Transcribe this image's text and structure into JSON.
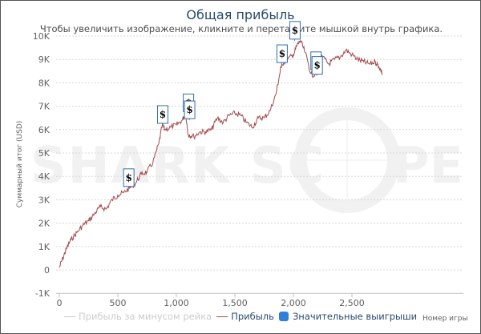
{
  "header": {
    "title": "Общая прибыль",
    "subtitle": "Чтобы увеличить изображение, кликните и перетащите мышкой внутрь графика."
  },
  "watermark": "SHARK SCOPE",
  "colors": {
    "profit_line": "#a5494b",
    "rake_line": "#c8c8c8",
    "big_win_marker": "#2f7ed8",
    "title": "#274b6d",
    "grid": "#d8d8d8"
  },
  "axes": {
    "y_title": "Суммарный итог (USD)",
    "x_title": "Номер игры",
    "y_ticks": [
      "10K",
      "9K",
      "8K",
      "7K",
      "6K",
      "5K",
      "4K",
      "3K",
      "2K",
      "1K",
      "0",
      "-1K"
    ],
    "x_ticks": [
      "0",
      "500",
      "1,000",
      "1,500",
      "2,000",
      "2,500"
    ]
  },
  "legend": {
    "items": [
      {
        "label": "Прибыль за минусом рейка",
        "type": "line",
        "color": "#c8c8c8",
        "active": false
      },
      {
        "label": "Прибыль",
        "type": "line",
        "color": "#a5494b",
        "active": true
      },
      {
        "label": "Значительные выигрыши",
        "type": "flag",
        "color": "#2f7ed8",
        "active": true
      }
    ]
  },
  "chart_data": {
    "type": "line",
    "title": "Общая прибыль",
    "subtitle": "Чтобы увеличить изображение, кликните и перетащите мышкой внутрь графика.",
    "xlabel": "Номер игры",
    "ylabel": "Суммарный итог (USD)",
    "xlim": [
      0,
      2780
    ],
    "ylim": [
      -1000,
      10000
    ],
    "grid": true,
    "legend_position": "bottom",
    "series": [
      {
        "name": "Прибыль",
        "x": [
          0,
          30,
          60,
          100,
          150,
          200,
          250,
          300,
          350,
          400,
          450,
          500,
          550,
          600,
          650,
          700,
          750,
          800,
          850,
          880,
          900,
          950,
          1000,
          1050,
          1080,
          1100,
          1150,
          1200,
          1250,
          1300,
          1350,
          1400,
          1450,
          1500,
          1550,
          1600,
          1650,
          1700,
          1750,
          1800,
          1850,
          1880,
          1900,
          1950,
          2000,
          2030,
          2060,
          2100,
          2150,
          2180,
          2200,
          2250,
          2300,
          2350,
          2400,
          2450,
          2500,
          2550,
          2600,
          2650,
          2700,
          2730,
          2760
        ],
        "y": [
          100,
          500,
          900,
          1300,
          1600,
          1900,
          2100,
          2400,
          2700,
          2600,
          3000,
          3200,
          3300,
          3500,
          3700,
          4100,
          4200,
          4600,
          5400,
          6200,
          6000,
          6100,
          6200,
          6400,
          6700,
          5800,
          5700,
          5900,
          5900,
          6000,
          6500,
          6300,
          6600,
          6700,
          6600,
          6300,
          6100,
          6500,
          6500,
          6800,
          7500,
          8300,
          8800,
          9000,
          9200,
          9600,
          9800,
          9300,
          8400,
          8300,
          8900,
          9100,
          8800,
          9000,
          9100,
          9400,
          9200,
          9000,
          8900,
          8800,
          8900,
          8700,
          8400
        ]
      },
      {
        "name": "Значительные выигрыши",
        "type": "flags",
        "x": [
          590,
          880,
          1100,
          1110,
          1900,
          2010,
          2190,
          2200
        ],
        "y": [
          3500,
          6200,
          6700,
          6400,
          8800,
          9800,
          8500,
          8300
        ]
      }
    ]
  }
}
